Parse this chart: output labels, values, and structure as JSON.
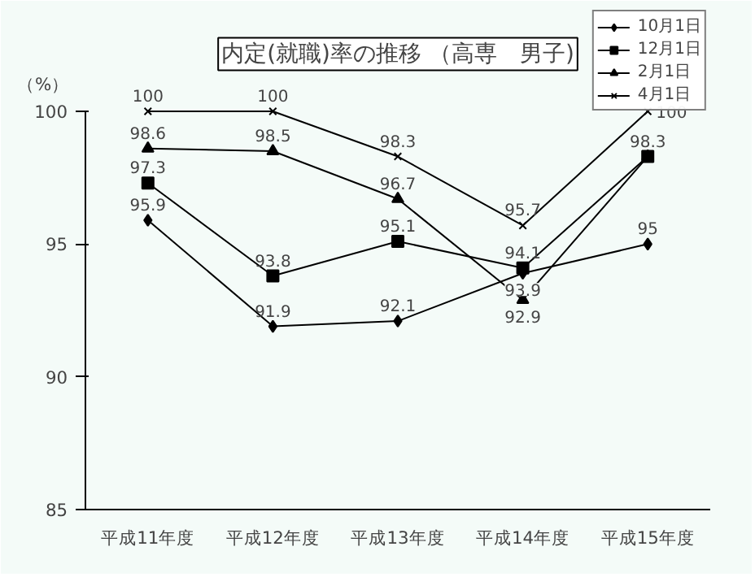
{
  "chart_data": {
    "type": "line",
    "title": "内定(就職)率の推移 （高専　男子)",
    "ylabel": "（%）",
    "categories": [
      "平成11年度",
      "平成12年度",
      "平成13年度",
      "平成14年度",
      "平成15年度"
    ],
    "series": [
      {
        "name": "10月1日",
        "color": "#000000",
        "marker": "diamond",
        "values": [
          95.9,
          91.9,
          92.1,
          93.9,
          95
        ],
        "value_labels": [
          "95.9",
          "91.9",
          "92.1",
          "93.9",
          "95"
        ]
      },
      {
        "name": "12月1日",
        "color": "#000000",
        "marker": "square",
        "values": [
          97.3,
          93.8,
          95.1,
          94.1,
          98.3
        ],
        "value_labels": [
          "97.3",
          "93.8",
          "95.1",
          "94.1",
          "98.3"
        ]
      },
      {
        "name": "2月1日",
        "color": "#000000",
        "marker": "triangle",
        "values": [
          98.6,
          98.5,
          96.7,
          92.9,
          98.3
        ],
        "value_labels": [
          "98.6",
          "98.5",
          "96.7",
          "92.9",
          null
        ]
      },
      {
        "name": "4月1日",
        "color": "#000000",
        "marker": "cross",
        "values": [
          100,
          100,
          98.3,
          95.7,
          100
        ],
        "value_labels": [
          "100",
          "100",
          "98.3",
          "95.7",
          "100"
        ]
      }
    ],
    "ylim": [
      85,
      100
    ],
    "yticks": [
      85,
      90,
      95,
      100
    ],
    "grid": false,
    "legend": "top right",
    "line_style": "solid"
  }
}
